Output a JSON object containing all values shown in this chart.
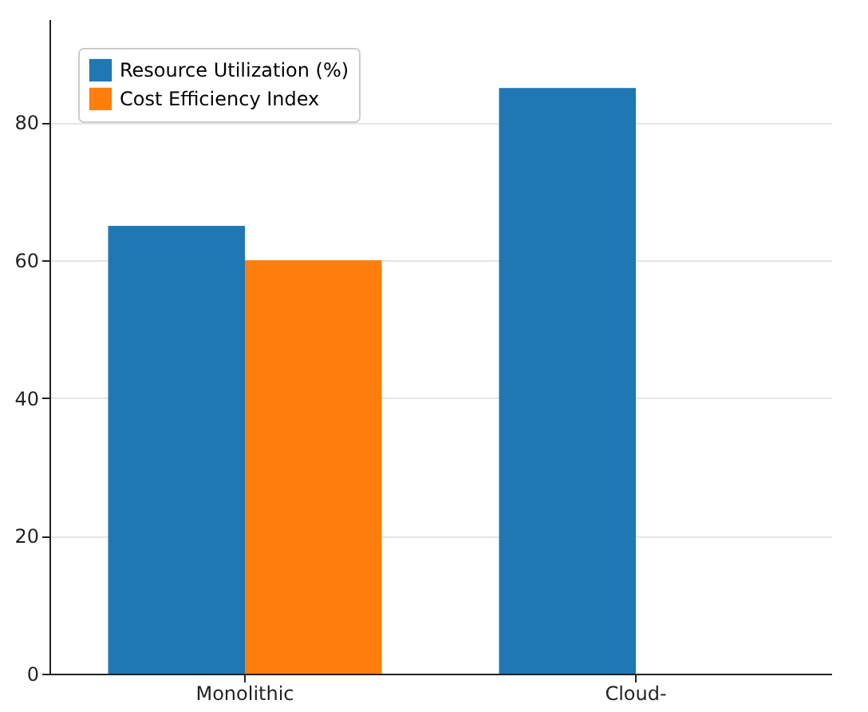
{
  "chart_data": {
    "type": "bar",
    "categories": [
      "Monolithic",
      "Cloud-"
    ],
    "series": [
      {
        "name": "Resource Utilization (%)",
        "color": "#1f77b4",
        "values": [
          65,
          85
        ]
      },
      {
        "name": "Cost Efficiency Index",
        "color": "#ff7f0e",
        "values": [
          60,
          null
        ]
      }
    ],
    "ylim": [
      0,
      95
    ],
    "yticks": [
      0,
      20,
      40,
      60,
      80
    ],
    "grid": "y",
    "legend": "top left"
  }
}
